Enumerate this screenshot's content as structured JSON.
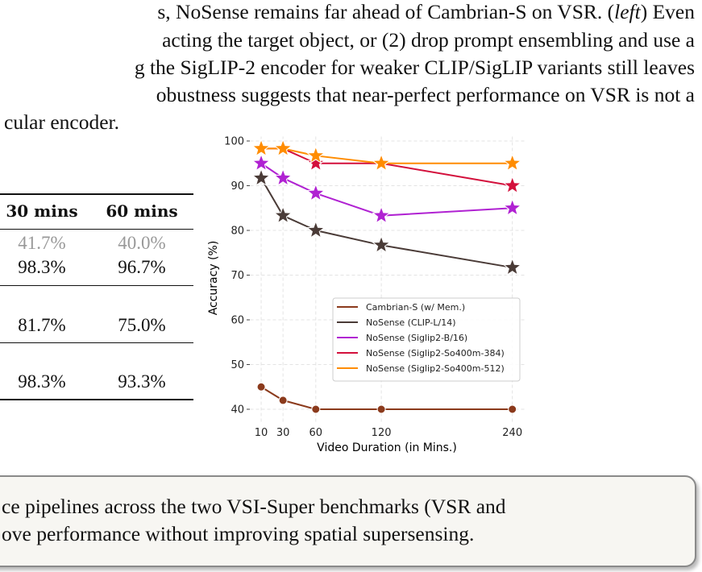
{
  "paragraph": {
    "lines": [
      "s, NoSense remains far ahead of Cambrian-S on VSR. (",
      "acting the target object, or (2) drop prompt ensembling and use a",
      "g the SigLIP-2 encoder for weaker CLIP/SigLIP variants still leaves",
      "obustness suggests that near-perfect performance on VSR is not a",
      "cular encoder."
    ],
    "italic_word": "left",
    "line1_tail": ") Even"
  },
  "table": {
    "headers": [
      "30 mins",
      "60 mins"
    ],
    "rows": [
      {
        "values": [
          "41.7%",
          "40.0%"
        ],
        "muted": true
      },
      {
        "values": [
          "98.3%",
          "96.7%"
        ],
        "muted": false
      },
      {
        "values": [
          "81.7%",
          "75.0%"
        ],
        "muted": false
      },
      {
        "values": [
          "98.3%",
          "93.3%"
        ],
        "muted": false
      }
    ]
  },
  "chart_data": {
    "type": "line",
    "xlabel": "Video Duration (in Mins.)",
    "ylabel": "Accuracy (%)",
    "x": [
      10,
      30,
      60,
      120,
      240
    ],
    "x_ticks": [
      "10",
      "30",
      "60",
      "120",
      "240"
    ],
    "y_ticks": [
      "40",
      "50",
      "60",
      "70",
      "80",
      "90",
      "100"
    ],
    "xlim": [
      0,
      250
    ],
    "ylim": [
      37,
      101
    ],
    "grid": true,
    "legend_position": "lower-right",
    "series": [
      {
        "name": "Cambrian-S (w/ Mem.)",
        "color": "#8b3a1c",
        "marker": "circle",
        "values": [
          45,
          42,
          40,
          40,
          40
        ]
      },
      {
        "name": "NoSense (CLIP-L/14)",
        "color": "#4a3b37",
        "marker": "star",
        "values": [
          91.7,
          83.3,
          80.0,
          76.7,
          71.7
        ]
      },
      {
        "name": "NoSense (Siglip2-B/16)",
        "color": "#b022d2",
        "marker": "star",
        "values": [
          95.0,
          91.7,
          88.3,
          83.3,
          85.0
        ]
      },
      {
        "name": "NoSense (Siglip2-So400m-384)",
        "color": "#d3103c",
        "marker": "star",
        "values": [
          98.3,
          98.3,
          95.0,
          95.0,
          90.0
        ]
      },
      {
        "name": "NoSense (Siglip2-So400m-512)",
        "color": "#ff8c00",
        "marker": "star",
        "values": [
          98.3,
          98.3,
          96.7,
          95.0,
          95.0
        ]
      }
    ]
  },
  "caption_box": {
    "lines": [
      "ce pipelines across the two VSI-Super benchmarks (VSR and",
      "ove performance without improving spatial supersensing."
    ]
  }
}
